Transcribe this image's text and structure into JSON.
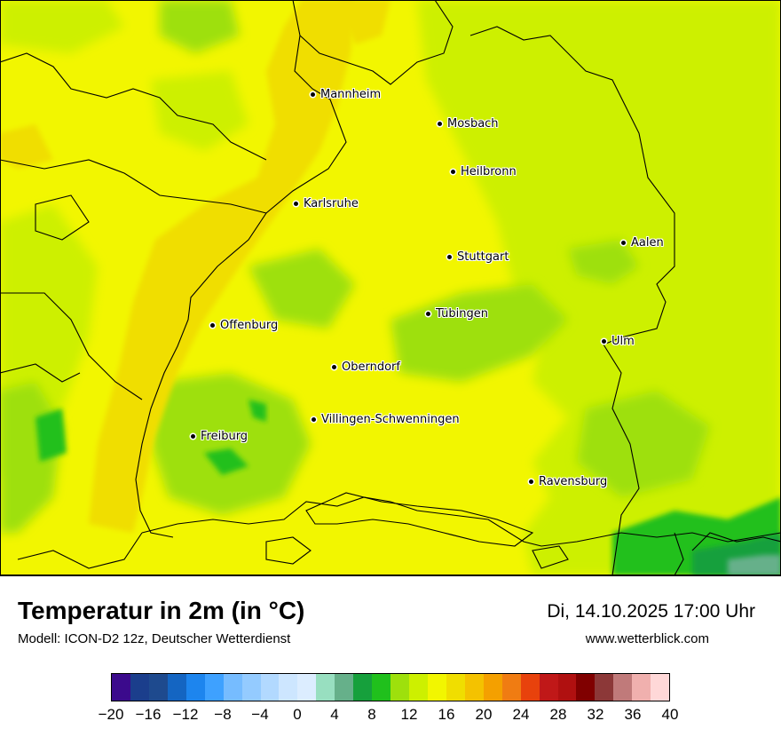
{
  "map": {
    "cities": [
      {
        "name": "Mannheim"
      },
      {
        "name": "Mosbach"
      },
      {
        "name": "Heilbronn"
      },
      {
        "name": "Karlsruhe"
      },
      {
        "name": "Aalen"
      },
      {
        "name": "Stuttgart"
      },
      {
        "name": "Tübingen"
      },
      {
        "name": "Offenburg"
      },
      {
        "name": "Ulm"
      },
      {
        "name": "Oberndorf"
      },
      {
        "name": "Villingen-Schwenningen"
      },
      {
        "name": "Freiburg"
      },
      {
        "name": "Ravensburg"
      }
    ]
  },
  "header": {
    "title": "Temperatur in 2m (in °C)",
    "model": "Modell: ICON-D2 12z, Deutscher Wetterdienst",
    "datetime": "Di, 14.10.2025 17:00 Uhr",
    "website": "www.wetterblick.com"
  },
  "legend": {
    "colors": [
      "#3b0a8c",
      "#1b3e8c",
      "#1e4a8e",
      "#1465c2",
      "#1d85ee",
      "#3ea1ff",
      "#76bcff",
      "#94cbff",
      "#b2d9ff",
      "#cde6ff",
      "#dcedff",
      "#98dfc0",
      "#66b08a",
      "#16a03c",
      "#20c01c",
      "#9ee00c",
      "#cdf000",
      "#f2f600",
      "#f0de00",
      "#f4c200",
      "#f4a000",
      "#f07c12",
      "#e8420c",
      "#c01818",
      "#b01010",
      "#800000",
      "#8c3838",
      "#c07a7a",
      "#f0b0ae",
      "#ffd8d8"
    ],
    "ticks": [
      "−20",
      "−16",
      "−12",
      "−8",
      "−4",
      "0",
      "4",
      "8",
      "12",
      "16",
      "20",
      "24",
      "28",
      "32",
      "36",
      "40"
    ],
    "min": -20,
    "max": 40
  }
}
